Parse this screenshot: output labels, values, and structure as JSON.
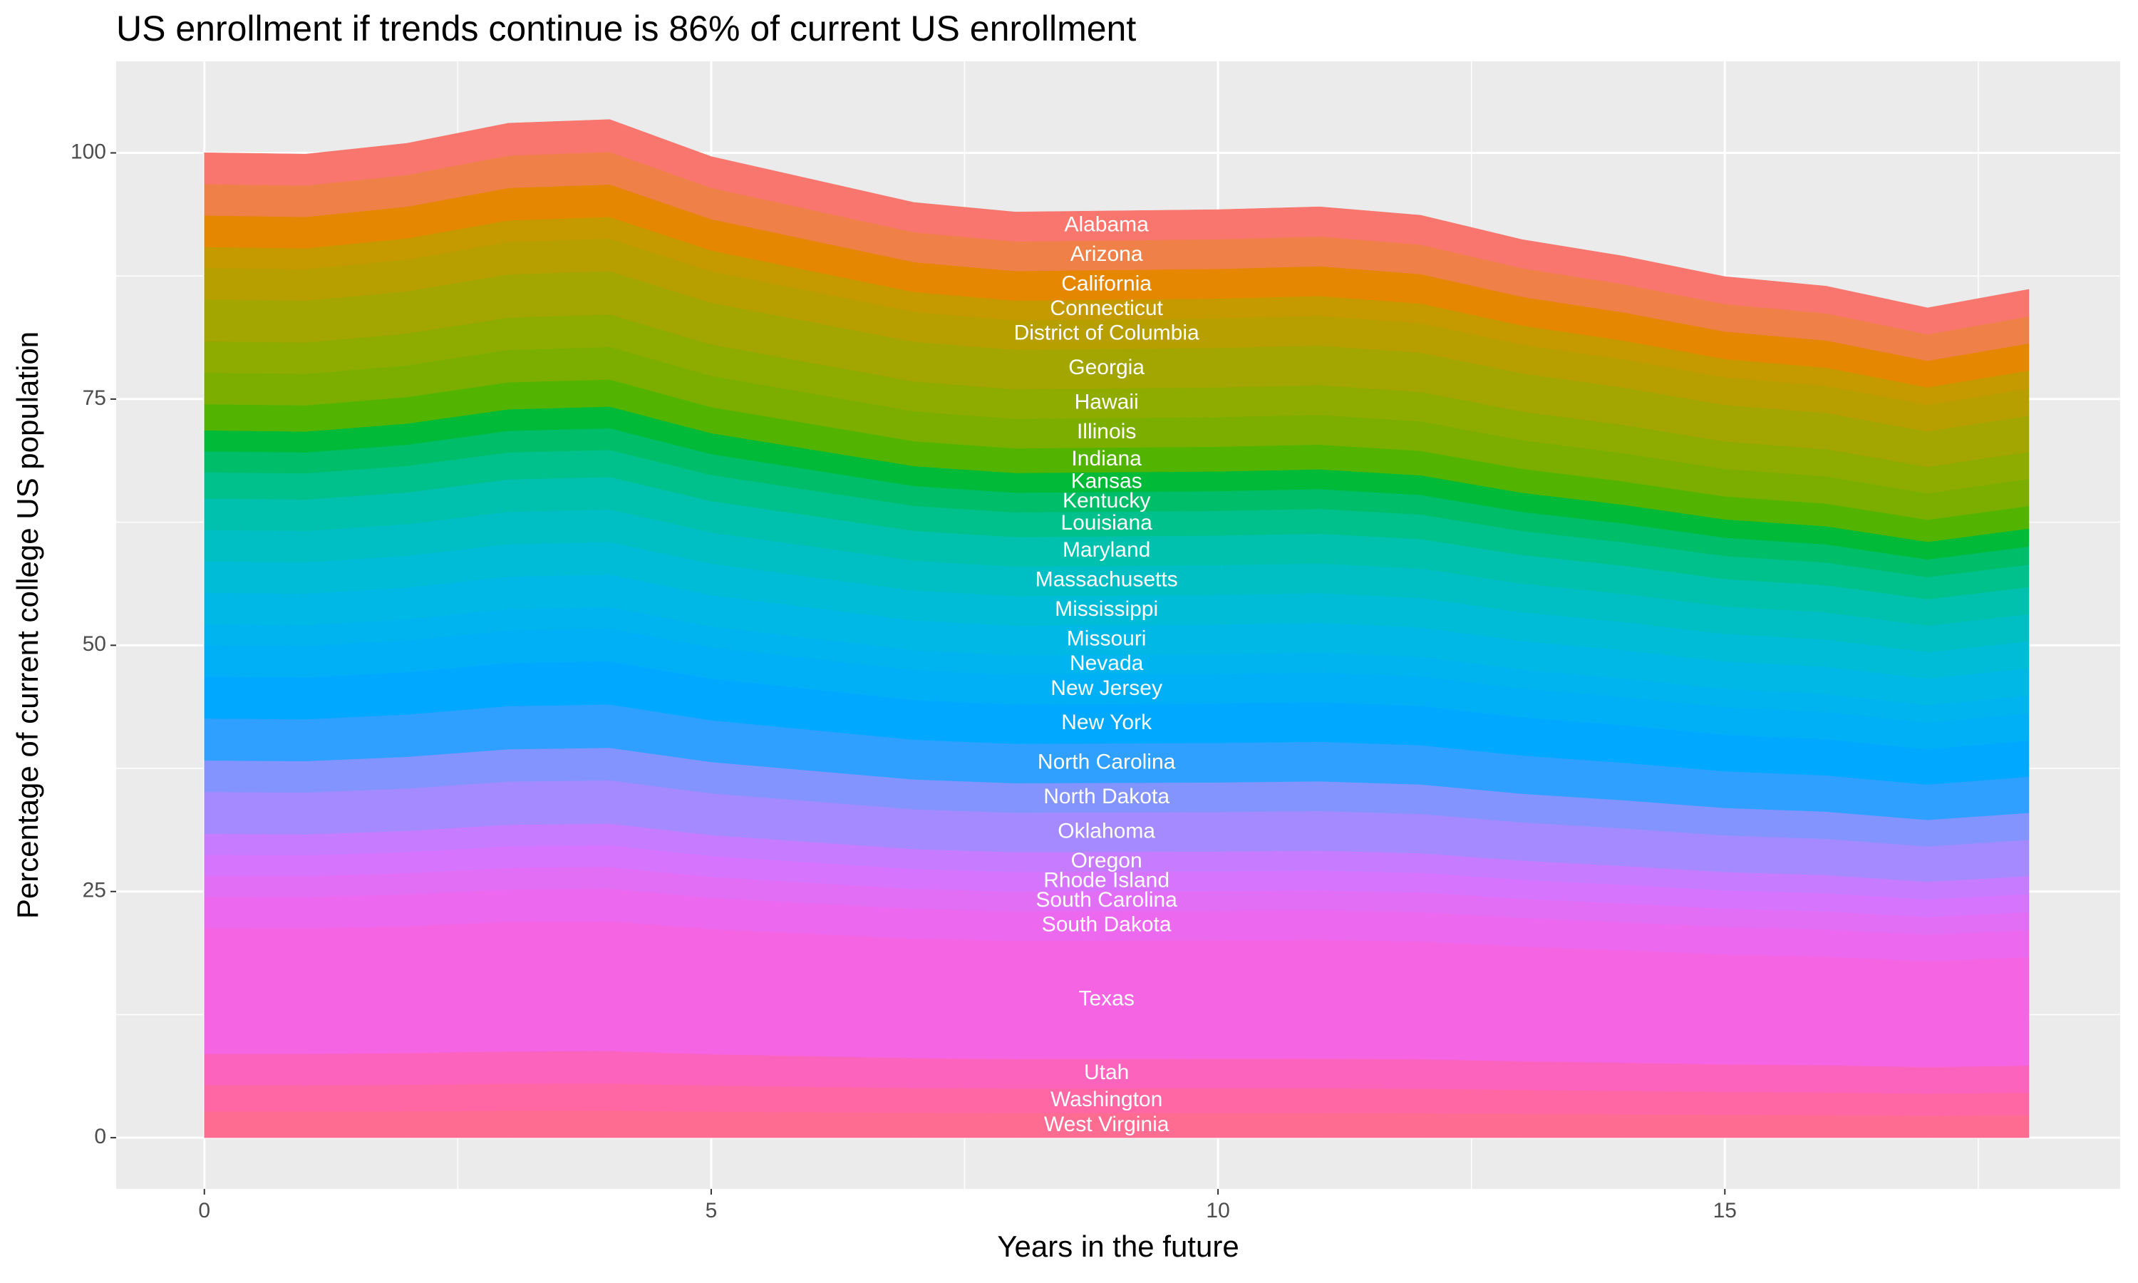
{
  "chart_data": {
    "type": "area",
    "stacked": true,
    "title": "US enrollment if trends continue is 86% of current US enrollment",
    "x_label": "Years in the future",
    "y_label": "Percentage of current college US population",
    "x": [
      0,
      1,
      2,
      3,
      4,
      5,
      7,
      8,
      10,
      11,
      12,
      13,
      14,
      15,
      16,
      17,
      18
    ],
    "xlim": [
      -0.87,
      18.9
    ],
    "ylim": [
      -5.2,
      109.3
    ],
    "xticks": [
      0,
      5,
      10,
      15
    ],
    "yticks": [
      0,
      25,
      50,
      75,
      100
    ],
    "grid": true,
    "label_x": 8.9,
    "series": [
      {
        "name": "West Virginia",
        "color": "#FF6C91",
        "values": [
          2.66,
          2.66,
          2.69,
          2.74,
          2.75,
          2.65,
          2.53,
          2.5,
          2.51,
          2.51,
          2.49,
          2.43,
          2.38,
          2.33,
          2.3,
          2.24,
          2.29
        ]
      },
      {
        "name": "Washington",
        "color": "#FF67A4",
        "values": [
          2.66,
          2.66,
          2.69,
          2.74,
          2.75,
          2.65,
          2.53,
          2.5,
          2.51,
          2.51,
          2.49,
          2.43,
          2.38,
          2.33,
          2.3,
          2.24,
          2.29
        ]
      },
      {
        "name": "Utah",
        "color": "#FC63BC",
        "values": [
          3.19,
          3.19,
          3.22,
          3.29,
          3.3,
          3.18,
          3.03,
          3,
          3.01,
          3.02,
          2.99,
          2.91,
          2.86,
          2.79,
          2.76,
          2.69,
          2.75
        ]
      },
      {
        "name": "Texas",
        "color": "#F564E3",
        "values": [
          12.77,
          12.74,
          12.89,
          13.15,
          13.19,
          12.71,
          12.13,
          12,
          12.02,
          12.06,
          11.96,
          11.64,
          11.42,
          11.16,
          11.03,
          10.76,
          11
        ]
      },
      {
        "name": "South Dakota",
        "color": "#EC69EF",
        "values": [
          3.19,
          3.19,
          3.22,
          3.29,
          3.3,
          3.18,
          3.03,
          3,
          3.01,
          3.02,
          2.99,
          2.91,
          2.86,
          2.79,
          2.76,
          2.69,
          2.75
        ]
      },
      {
        "name": "South Carolina",
        "color": "#E36EF6",
        "values": [
          2.13,
          2.12,
          2.15,
          2.19,
          2.2,
          2.12,
          2.02,
          2,
          2,
          2.01,
          1.99,
          1.94,
          1.9,
          1.86,
          1.84,
          1.79,
          1.83
        ]
      },
      {
        "name": "Rhode Island",
        "color": "#D774FD",
        "values": [
          2.13,
          2.12,
          2.15,
          2.19,
          2.2,
          2.12,
          2.02,
          2,
          2,
          2.01,
          1.99,
          1.94,
          1.9,
          1.86,
          1.84,
          1.79,
          1.83
        ]
      },
      {
        "name": "Oregon",
        "color": "#C77CFF",
        "values": [
          2.13,
          2.12,
          2.15,
          2.19,
          2.2,
          2.12,
          2.02,
          2,
          2,
          2.01,
          1.99,
          1.94,
          1.9,
          1.86,
          1.84,
          1.79,
          1.83
        ]
      },
      {
        "name": "Oklahoma",
        "color": "#A58AFF",
        "values": [
          4.26,
          4.25,
          4.3,
          4.38,
          4.4,
          4.24,
          4.04,
          4,
          4.01,
          4.02,
          3.99,
          3.88,
          3.81,
          3.72,
          3.68,
          3.59,
          3.67
        ]
      },
      {
        "name": "North Dakota",
        "color": "#8494FF",
        "values": [
          3.19,
          3.19,
          3.22,
          3.29,
          3.3,
          3.18,
          3.03,
          3,
          3.01,
          3.02,
          2.99,
          2.91,
          2.86,
          2.79,
          2.76,
          2.69,
          2.75
        ]
      },
      {
        "name": "North Carolina",
        "color": "#2FA0FF",
        "values": [
          4.26,
          4.25,
          4.3,
          4.38,
          4.4,
          4.24,
          4.04,
          4,
          4.01,
          4.02,
          3.99,
          3.88,
          3.81,
          3.72,
          3.68,
          3.59,
          3.67
        ]
      },
      {
        "name": "New York",
        "color": "#00A9FF",
        "values": [
          4.26,
          4.25,
          4.3,
          4.38,
          4.4,
          4.24,
          4.04,
          4,
          4.01,
          4.02,
          3.99,
          3.88,
          3.81,
          3.72,
          3.68,
          3.59,
          3.67
        ]
      },
      {
        "name": "New Jersey",
        "color": "#00B0F6",
        "values": [
          3.19,
          3.19,
          3.22,
          3.29,
          3.3,
          3.18,
          3.03,
          3,
          3.01,
          3.02,
          2.99,
          2.91,
          2.86,
          2.79,
          2.76,
          2.69,
          2.75
        ]
      },
      {
        "name": "Nevada",
        "color": "#00B4EF",
        "values": [
          2.13,
          2.12,
          2.15,
          2.19,
          2.2,
          2.12,
          2.02,
          2,
          2,
          2.01,
          1.99,
          1.94,
          1.9,
          1.86,
          1.84,
          1.79,
          1.83
        ]
      },
      {
        "name": "Missouri",
        "color": "#00B8E5",
        "values": [
          3.19,
          3.19,
          3.22,
          3.29,
          3.3,
          3.18,
          3.03,
          3,
          3.01,
          3.02,
          2.99,
          2.91,
          2.86,
          2.79,
          2.76,
          2.69,
          2.75
        ]
      },
      {
        "name": "Mississippi",
        "color": "#00BCD6",
        "values": [
          3.19,
          3.19,
          3.22,
          3.29,
          3.3,
          3.18,
          3.03,
          3,
          3.01,
          3.02,
          2.99,
          2.91,
          2.86,
          2.79,
          2.76,
          2.69,
          2.75
        ]
      },
      {
        "name": "Massachusetts",
        "color": "#00BFC4",
        "values": [
          3.19,
          3.19,
          3.22,
          3.29,
          3.3,
          3.18,
          3.03,
          3,
          3.01,
          3.02,
          2.99,
          2.91,
          2.86,
          2.79,
          2.76,
          2.69,
          2.75
        ]
      },
      {
        "name": "Maryland",
        "color": "#00C0AE",
        "values": [
          3.19,
          3.19,
          3.22,
          3.29,
          3.3,
          3.18,
          3.03,
          3,
          3.01,
          3.02,
          2.99,
          2.91,
          2.86,
          2.79,
          2.76,
          2.69,
          2.75
        ]
      },
      {
        "name": "Louisiana",
        "color": "#00C08B",
        "values": [
          2.66,
          2.66,
          2.69,
          2.74,
          2.75,
          2.65,
          2.53,
          2.5,
          2.51,
          2.51,
          2.49,
          2.43,
          2.38,
          2.33,
          2.3,
          2.24,
          2.29
        ]
      },
      {
        "name": "Kentucky",
        "color": "#00BD6A",
        "values": [
          2.13,
          2.12,
          2.15,
          2.19,
          2.2,
          2.12,
          2.02,
          2,
          2,
          2.01,
          1.99,
          1.94,
          1.9,
          1.86,
          1.84,
          1.79,
          1.83
        ]
      },
      {
        "name": "Kansas",
        "color": "#00BA38",
        "values": [
          2.13,
          2.12,
          2.15,
          2.19,
          2.2,
          2.12,
          2.02,
          2,
          2,
          2.01,
          1.99,
          1.94,
          1.9,
          1.86,
          1.84,
          1.79,
          1.83
        ]
      },
      {
        "name": "Indiana",
        "color": "#53B400",
        "values": [
          2.66,
          2.66,
          2.69,
          2.74,
          2.75,
          2.65,
          2.53,
          2.5,
          2.51,
          2.51,
          2.49,
          2.43,
          2.38,
          2.33,
          2.3,
          2.24,
          2.29
        ]
      },
      {
        "name": "Illinois",
        "color": "#7CAE00",
        "values": [
          3.19,
          3.19,
          3.22,
          3.29,
          3.3,
          3.18,
          3.03,
          3,
          3.01,
          3.02,
          2.99,
          2.91,
          2.86,
          2.79,
          2.76,
          2.69,
          2.75
        ]
      },
      {
        "name": "Hawaii",
        "color": "#8EAB00",
        "values": [
          3.19,
          3.19,
          3.22,
          3.29,
          3.3,
          3.18,
          3.03,
          3,
          3.01,
          3.02,
          2.99,
          2.91,
          2.86,
          2.79,
          2.76,
          2.69,
          2.75
        ]
      },
      {
        "name": "Georgia",
        "color": "#A3A500",
        "values": [
          4.26,
          4.25,
          4.3,
          4.38,
          4.4,
          4.24,
          4.04,
          4,
          4.01,
          4.02,
          3.99,
          3.88,
          3.81,
          3.72,
          3.68,
          3.59,
          3.67
        ]
      },
      {
        "name": "District of Columbia",
        "color": "#B79F00",
        "values": [
          3.19,
          3.19,
          3.22,
          3.29,
          3.3,
          3.18,
          3.03,
          3,
          3.01,
          3.02,
          2.99,
          2.91,
          2.86,
          2.79,
          2.76,
          2.69,
          2.75
        ]
      },
      {
        "name": "Connecticut",
        "color": "#C49A00",
        "values": [
          2.13,
          2.12,
          2.15,
          2.19,
          2.2,
          2.12,
          2.02,
          2,
          2,
          2.01,
          1.99,
          1.94,
          1.9,
          1.86,
          1.84,
          1.79,
          1.83
        ]
      },
      {
        "name": "California",
        "color": "#E58700",
        "values": [
          3.19,
          3.19,
          3.22,
          3.29,
          3.3,
          3.18,
          3.03,
          3,
          3.01,
          3.02,
          2.99,
          2.91,
          2.86,
          2.79,
          2.76,
          2.69,
          2.75
        ]
      },
      {
        "name": "Arizona",
        "color": "#EF8047",
        "values": [
          3.19,
          3.19,
          3.22,
          3.29,
          3.3,
          3.18,
          3.03,
          3,
          3.01,
          3.02,
          2.99,
          2.91,
          2.86,
          2.79,
          2.76,
          2.69,
          2.75
        ]
      },
      {
        "name": "Alabama",
        "color": "#F8766D",
        "values": [
          3.19,
          3.19,
          3.22,
          3.29,
          3.3,
          3.18,
          3.03,
          3,
          3.01,
          3.02,
          2.99,
          2.91,
          2.86,
          2.79,
          2.76,
          2.69,
          2.75
        ]
      }
    ]
  }
}
